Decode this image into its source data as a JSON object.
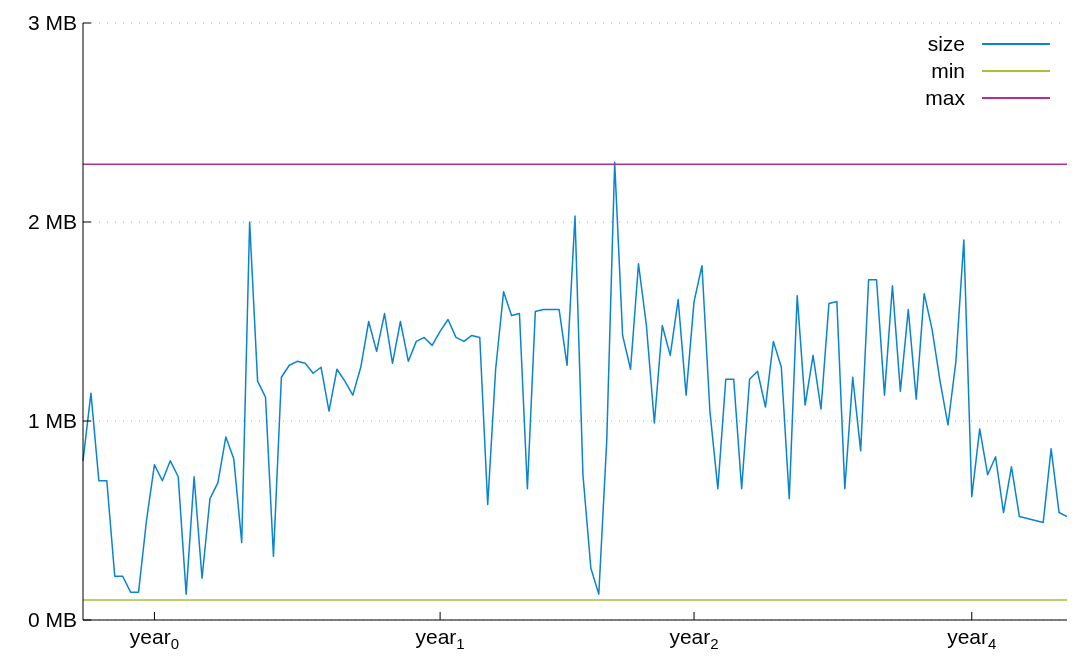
{
  "chart_data": {
    "type": "line",
    "categories": [
      null,
      null,
      null,
      null,
      null,
      null,
      null,
      null,
      null,
      "year$_{0}$",
      null,
      null,
      null,
      null,
      null,
      null,
      null,
      null,
      null,
      null,
      null,
      null,
      null,
      null,
      null,
      null,
      null,
      null,
      null,
      null,
      null,
      null,
      null,
      null,
      null,
      null,
      null,
      null,
      null,
      null,
      null,
      null,
      null,
      null,
      null,
      "year$_{1}$",
      null,
      null,
      null,
      null,
      null,
      null,
      null,
      null,
      null,
      null,
      null,
      null,
      null,
      null,
      null,
      null,
      null,
      null,
      null,
      null,
      null,
      null,
      null,
      null,
      null,
      null,
      null,
      null,
      null,
      null,
      null,
      "year$_{2}$",
      null,
      null,
      null,
      null,
      null,
      null,
      null,
      null,
      null,
      null,
      null,
      null,
      null,
      null,
      null,
      null,
      null,
      null,
      null,
      null,
      null,
      null,
      null,
      null,
      null,
      null,
      null,
      null,
      null,
      null,
      null,
      null,
      null,
      null,
      "year$_{4}$",
      null,
      null,
      null,
      null,
      null,
      null,
      null,
      null,
      null,
      null,
      null,
      null
    ],
    "ylim": [
      0,
      3
    ],
    "yticks": [
      {
        "value": 0,
        "label": "0 MB"
      },
      {
        "value": 1,
        "label": "1 MB"
      },
      {
        "value": 2,
        "label": "2 MB"
      },
      {
        "value": 3,
        "label": "3 MB"
      }
    ],
    "grid": "y",
    "legend": "top right",
    "line_style": "solid",
    "marker": "none",
    "series": [
      {
        "name": "size",
        "color": "#0a84d0",
        "values": [
          0.8,
          1.14,
          0.7,
          0.7,
          0.22,
          0.22,
          0.14,
          0.14,
          0.5,
          0.78,
          0.7,
          0.8,
          0.72,
          0.13,
          0.72,
          0.21,
          0.61,
          0.69,
          0.92,
          0.81,
          0.39,
          2.0,
          1.2,
          1.12,
          0.32,
          1.22,
          1.28,
          1.3,
          1.29,
          1.24,
          1.27,
          1.05,
          1.26,
          1.2,
          1.13,
          1.27,
          1.5,
          1.35,
          1.54,
          1.29,
          1.5,
          1.3,
          1.4,
          1.42,
          1.38,
          1.45,
          1.51,
          1.42,
          1.4,
          1.43,
          1.42,
          0.58,
          1.26,
          1.65,
          1.53,
          1.54,
          0.66,
          1.55,
          1.56,
          1.56,
          1.56,
          1.28,
          2.03,
          0.73,
          0.26,
          0.13,
          0.9,
          2.3,
          1.43,
          1.26,
          1.79,
          1.48,
          0.99,
          1.48,
          1.33,
          1.61,
          1.13,
          1.6,
          1.78,
          1.05,
          0.66,
          1.21,
          1.21,
          0.66,
          1.21,
          1.25,
          1.07,
          1.4,
          1.27,
          0.61,
          1.63,
          1.08,
          1.33,
          1.06,
          1.59,
          1.6,
          0.66,
          1.22,
          0.85,
          1.71,
          1.71,
          1.13,
          1.68,
          1.15,
          1.56,
          1.11,
          1.64,
          1.46,
          1.2,
          0.98,
          1.3,
          1.91,
          0.62,
          0.96,
          0.73,
          0.82,
          0.54,
          0.77,
          0.52,
          0.51,
          0.5,
          0.49,
          0.86,
          0.54,
          0.52
        ]
      },
      {
        "name": "min",
        "color": "#a6c23a",
        "values": [
          0.1,
          0.1,
          0.1,
          0.1,
          0.1,
          0.1,
          0.1,
          0.1,
          0.1,
          0.1,
          0.1,
          0.1,
          0.1,
          0.1,
          0.1,
          0.1,
          0.1,
          0.1,
          0.1,
          0.1,
          0.1,
          0.1,
          0.1,
          0.1,
          0.1,
          0.1,
          0.1,
          0.1,
          0.1,
          0.1,
          0.1,
          0.1,
          0.1,
          0.1,
          0.1,
          0.1,
          0.1,
          0.1,
          0.1,
          0.1,
          0.1,
          0.1,
          0.1,
          0.1,
          0.1,
          0.1,
          0.1,
          0.1,
          0.1,
          0.1,
          0.1,
          0.1,
          0.1,
          0.1,
          0.1,
          0.1,
          0.1,
          0.1,
          0.1,
          0.1,
          0.1,
          0.1,
          0.1,
          0.1,
          0.1,
          0.1,
          0.1,
          0.1,
          0.1,
          0.1,
          0.1,
          0.1,
          0.1,
          0.1,
          0.1,
          0.1,
          0.1,
          0.1,
          0.1,
          0.1,
          0.1,
          0.1,
          0.1,
          0.1,
          0.1,
          0.1,
          0.1,
          0.1,
          0.1,
          0.1,
          0.1,
          0.1,
          0.1,
          0.1,
          0.1,
          0.1,
          0.1,
          0.1,
          0.1,
          0.1,
          0.1,
          0.1,
          0.1,
          0.1,
          0.1,
          0.1,
          0.1,
          0.1,
          0.1,
          0.1,
          0.1,
          0.1,
          0.1,
          0.1,
          0.1,
          0.1,
          0.1,
          0.1,
          0.1,
          0.1,
          0.1,
          0.1,
          0.1,
          0.1,
          0.1
        ]
      },
      {
        "name": "max",
        "color": "#b0309a",
        "values": [
          2.29,
          2.29,
          2.29,
          2.29,
          2.29,
          2.29,
          2.29,
          2.29,
          2.29,
          2.29,
          2.29,
          2.29,
          2.29,
          2.29,
          2.29,
          2.29,
          2.29,
          2.29,
          2.29,
          2.29,
          2.29,
          2.29,
          2.29,
          2.29,
          2.29,
          2.29,
          2.29,
          2.29,
          2.29,
          2.29,
          2.29,
          2.29,
          2.29,
          2.29,
          2.29,
          2.29,
          2.29,
          2.29,
          2.29,
          2.29,
          2.29,
          2.29,
          2.29,
          2.29,
          2.29,
          2.29,
          2.29,
          2.29,
          2.29,
          2.29,
          2.29,
          2.29,
          2.29,
          2.29,
          2.29,
          2.29,
          2.29,
          2.29,
          2.29,
          2.29,
          2.29,
          2.29,
          2.29,
          2.29,
          2.29,
          2.29,
          2.29,
          2.29,
          2.29,
          2.29,
          2.29,
          2.29,
          2.29,
          2.29,
          2.29,
          2.29,
          2.29,
          2.29,
          2.29,
          2.29,
          2.29,
          2.29,
          2.29,
          2.29,
          2.29,
          2.29,
          2.29,
          2.29,
          2.29,
          2.29,
          2.29,
          2.29,
          2.29,
          2.29,
          2.29,
          2.29,
          2.29,
          2.29,
          2.29,
          2.29,
          2.29,
          2.29,
          2.29,
          2.29,
          2.29,
          2.29,
          2.29,
          2.29,
          2.29,
          2.29,
          2.29,
          2.29,
          2.29,
          2.29,
          2.29,
          2.29,
          2.29,
          2.29,
          2.29,
          2.29,
          2.29,
          2.29,
          2.29,
          2.29,
          2.29
        ]
      }
    ]
  }
}
